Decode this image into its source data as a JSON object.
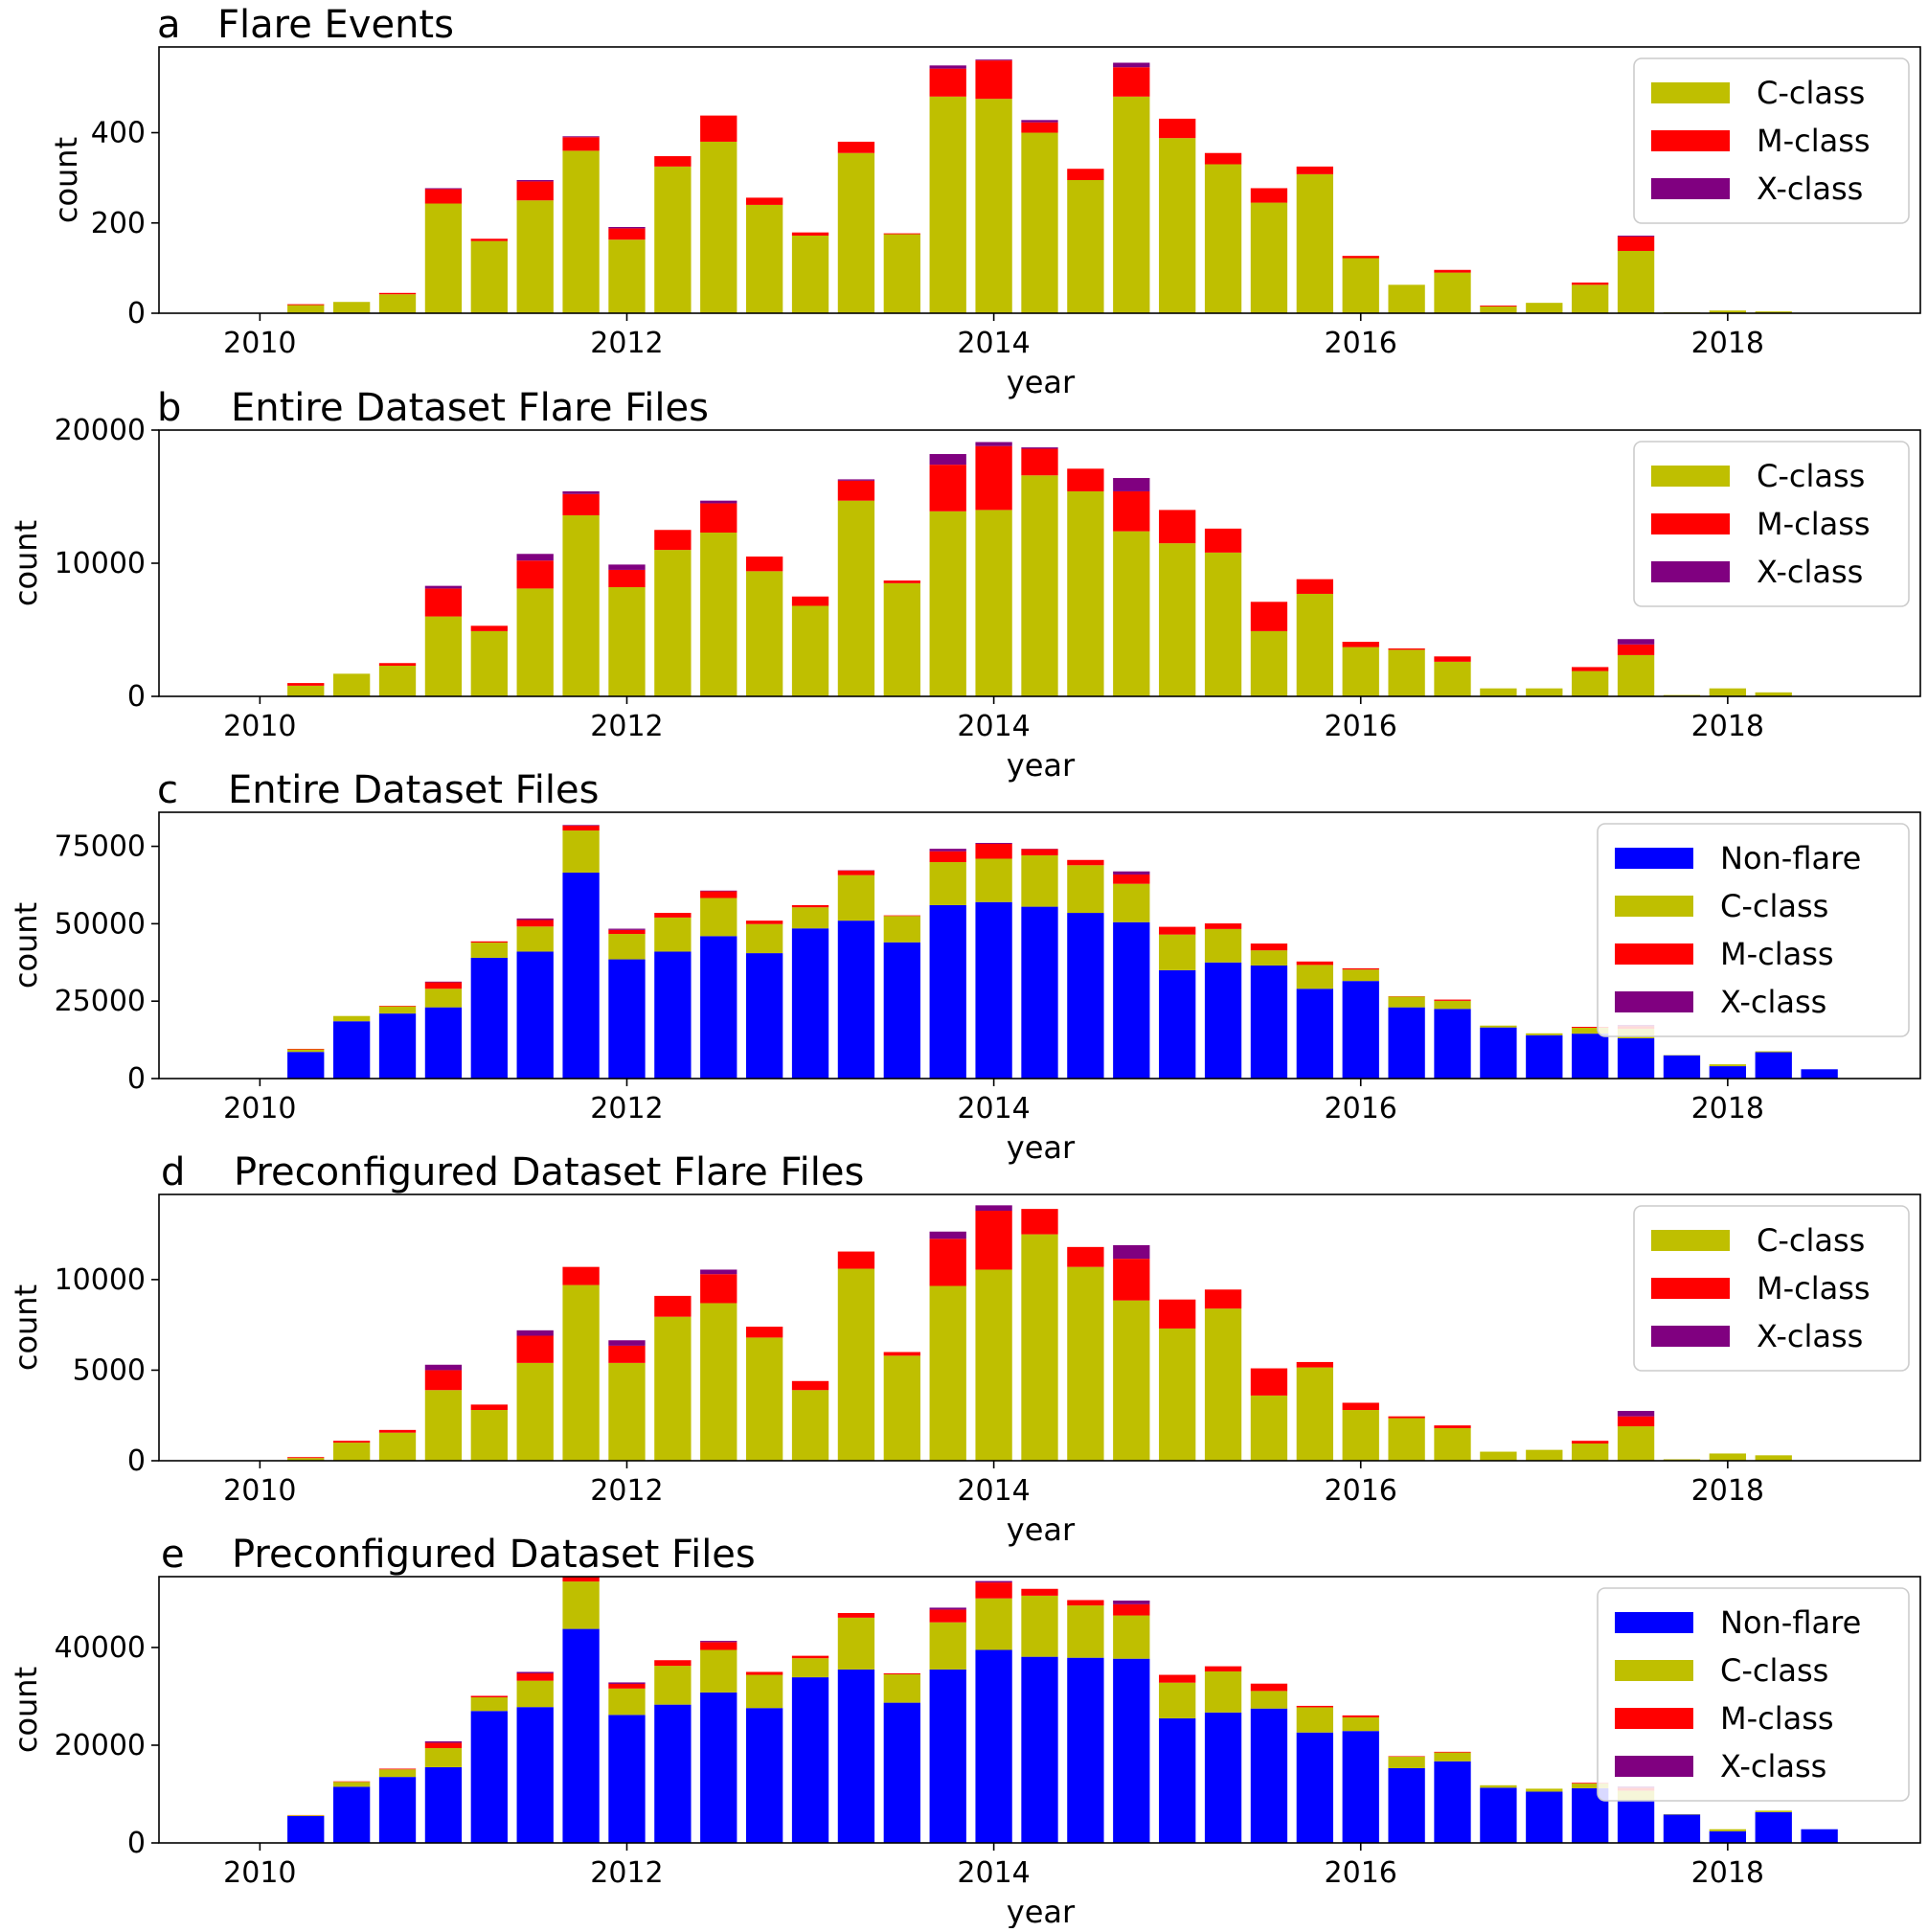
{
  "chart_data": [
    {
      "panel_letter": "a",
      "title": "Flare Events",
      "type": "bar",
      "stacked": true,
      "xlabel": "year",
      "ylabel": "count",
      "xlim": [
        2009.45,
        2019.05
      ],
      "ylim": [
        0,
        590
      ],
      "x_ticks": [
        2010,
        2012,
        2014,
        2016,
        2018
      ],
      "y_ticks": [
        0,
        200,
        400
      ],
      "x": [
        2010.25,
        2010.5,
        2010.75,
        2011.0,
        2011.25,
        2011.5,
        2011.75,
        2012.0,
        2012.25,
        2012.5,
        2012.75,
        2013.0,
        2013.25,
        2013.5,
        2013.75,
        2014.0,
        2014.25,
        2014.5,
        2014.75,
        2015.0,
        2015.25,
        2015.5,
        2015.75,
        2016.0,
        2016.25,
        2016.5,
        2016.75,
        2017.0,
        2017.25,
        2017.5,
        2017.75,
        2018.0,
        2018.25
      ],
      "legend_position": "top-right",
      "series": [
        {
          "name": "C-class",
          "color": "#bfbf00",
          "values": [
            18,
            25,
            42,
            243,
            160,
            250,
            360,
            163,
            325,
            380,
            240,
            172,
            355,
            175,
            480,
            475,
            400,
            295,
            480,
            388,
            330,
            245,
            308,
            122,
            63,
            90,
            15,
            23,
            63,
            138,
            2,
            6,
            4
          ]
        },
        {
          "name": "M-class",
          "color": "#ff0000",
          "values": [
            2,
            0,
            3,
            32,
            5,
            42,
            30,
            25,
            23,
            58,
            16,
            7,
            25,
            2,
            62,
            85,
            23,
            25,
            65,
            43,
            25,
            32,
            17,
            5,
            0,
            6,
            2,
            0,
            5,
            32,
            0,
            0,
            0
          ]
        },
        {
          "name": "X-class",
          "color": "#800080",
          "values": [
            0,
            0,
            0,
            2,
            0,
            3,
            2,
            3,
            0,
            0,
            0,
            0,
            0,
            0,
            7,
            2,
            5,
            0,
            10,
            0,
            0,
            0,
            0,
            0,
            0,
            0,
            0,
            0,
            0,
            2,
            0,
            0,
            0
          ]
        }
      ]
    },
    {
      "panel_letter": "b",
      "title": "Entire Dataset Flare Files",
      "type": "bar",
      "stacked": true,
      "xlabel": "year",
      "ylabel": "count",
      "xlim": [
        2009.45,
        2019.05
      ],
      "ylim": [
        0,
        20000
      ],
      "x_ticks": [
        2010,
        2012,
        2014,
        2016,
        2018
      ],
      "y_ticks": [
        0,
        10000,
        20000
      ],
      "x": [
        2010.25,
        2010.5,
        2010.75,
        2011.0,
        2011.25,
        2011.5,
        2011.75,
        2012.0,
        2012.25,
        2012.5,
        2012.75,
        2013.0,
        2013.25,
        2013.5,
        2013.75,
        2014.0,
        2014.25,
        2014.5,
        2014.75,
        2015.0,
        2015.25,
        2015.5,
        2015.75,
        2016.0,
        2016.25,
        2016.5,
        2016.75,
        2017.0,
        2017.25,
        2017.5,
        2017.75,
        2018.0,
        2018.25
      ],
      "legend_position": "top-right",
      "series": [
        {
          "name": "C-class",
          "color": "#bfbf00",
          "values": [
            800,
            1700,
            2300,
            6000,
            4900,
            8100,
            13600,
            8200,
            11000,
            12300,
            9400,
            6800,
            14700,
            8500,
            13900,
            14000,
            16600,
            15400,
            12400,
            11500,
            10800,
            4900,
            7700,
            3700,
            3500,
            2600,
            600,
            600,
            1900,
            3100,
            100,
            600,
            300
          ]
        },
        {
          "name": "M-class",
          "color": "#ff0000",
          "values": [
            200,
            0,
            200,
            2100,
            400,
            2100,
            1600,
            1300,
            1500,
            2200,
            1100,
            700,
            1500,
            200,
            3500,
            4800,
            2000,
            1700,
            3000,
            2500,
            1800,
            2200,
            1100,
            400,
            100,
            400,
            0,
            0,
            300,
            800,
            0,
            0,
            0
          ]
        },
        {
          "name": "X-class",
          "color": "#800080",
          "values": [
            0,
            0,
            0,
            200,
            0,
            500,
            200,
            400,
            0,
            200,
            0,
            0,
            100,
            0,
            800,
            300,
            100,
            0,
            1000,
            0,
            0,
            0,
            0,
            0,
            0,
            0,
            0,
            0,
            0,
            400,
            0,
            0,
            0
          ]
        }
      ]
    },
    {
      "panel_letter": "c",
      "title": "Entire Dataset Files",
      "type": "bar",
      "stacked": true,
      "xlabel": "year",
      "ylabel": "count",
      "xlim": [
        2009.45,
        2019.05
      ],
      "ylim": [
        0,
        86000
      ],
      "x_ticks": [
        2010,
        2012,
        2014,
        2016,
        2018
      ],
      "y_ticks": [
        0,
        25000,
        50000,
        75000
      ],
      "x": [
        2010.25,
        2010.5,
        2010.75,
        2011.0,
        2011.25,
        2011.5,
        2011.75,
        2012.0,
        2012.25,
        2012.5,
        2012.75,
        2013.0,
        2013.25,
        2013.5,
        2013.75,
        2014.0,
        2014.25,
        2014.5,
        2014.75,
        2015.0,
        2015.25,
        2015.5,
        2015.75,
        2016.0,
        2016.25,
        2016.5,
        2016.75,
        2017.0,
        2017.25,
        2017.5,
        2017.75,
        2018.0,
        2018.25,
        2018.5
      ],
      "legend_position": "top-right",
      "series": [
        {
          "name": "Non-flare",
          "color": "#0000ff",
          "values": [
            8600,
            18500,
            21000,
            23000,
            39000,
            41000,
            66500,
            38500,
            41000,
            46000,
            40500,
            48500,
            51000,
            44000,
            56000,
            57000,
            55500,
            53500,
            50500,
            35000,
            37500,
            36500,
            29000,
            31500,
            23000,
            22500,
            16500,
            14000,
            14500,
            13000,
            7500,
            4000,
            8500,
            3000
          ]
        },
        {
          "name": "C-class",
          "color": "#bfbf00",
          "values": [
            800,
            1700,
            2300,
            6000,
            4900,
            8100,
            13600,
            8200,
            11000,
            12300,
            9400,
            6800,
            14700,
            8500,
            13900,
            14000,
            16600,
            15400,
            12400,
            11500,
            10800,
            4900,
            7700,
            3700,
            3500,
            2600,
            600,
            600,
            1900,
            3100,
            100,
            600,
            300,
            0
          ]
        },
        {
          "name": "M-class",
          "color": "#ff0000",
          "values": [
            200,
            0,
            200,
            2100,
            400,
            2100,
            1600,
            1300,
            1500,
            2200,
            1100,
            700,
            1500,
            200,
            3500,
            4800,
            2000,
            1700,
            3000,
            2500,
            1800,
            2200,
            1100,
            400,
            100,
            400,
            0,
            0,
            300,
            800,
            0,
            0,
            0,
            0
          ]
        },
        {
          "name": "X-class",
          "color": "#800080",
          "values": [
            0,
            0,
            0,
            200,
            0,
            500,
            200,
            400,
            0,
            200,
            0,
            0,
            100,
            0,
            800,
            300,
            100,
            0,
            1000,
            0,
            0,
            0,
            0,
            0,
            0,
            0,
            0,
            0,
            0,
            400,
            0,
            0,
            0,
            0
          ]
        }
      ]
    },
    {
      "panel_letter": "d",
      "title": "Preconfigured Dataset Flare Files",
      "type": "bar",
      "stacked": true,
      "xlabel": "year",
      "ylabel": "count",
      "xlim": [
        2009.45,
        2019.05
      ],
      "ylim": [
        0,
        14700
      ],
      "x_ticks": [
        2010,
        2012,
        2014,
        2016,
        2018
      ],
      "y_ticks": [
        0,
        5000,
        10000
      ],
      "x": [
        2010.25,
        2010.5,
        2010.75,
        2011.0,
        2011.25,
        2011.5,
        2011.75,
        2012.0,
        2012.25,
        2012.5,
        2012.75,
        2013.0,
        2013.25,
        2013.5,
        2013.75,
        2014.0,
        2014.25,
        2014.5,
        2014.75,
        2015.0,
        2015.25,
        2015.5,
        2015.75,
        2016.0,
        2016.25,
        2016.5,
        2016.75,
        2017.0,
        2017.25,
        2017.5,
        2017.75,
        2018.0,
        2018.25
      ],
      "legend_position": "top-right",
      "series": [
        {
          "name": "C-class",
          "color": "#bfbf00",
          "values": [
            150,
            1000,
            1550,
            3900,
            2800,
            5400,
            9700,
            5400,
            7950,
            8700,
            6800,
            3900,
            10600,
            5800,
            9650,
            10550,
            12500,
            10700,
            8850,
            7300,
            8400,
            3600,
            5150,
            2800,
            2350,
            1800,
            500,
            600,
            950,
            1900,
            80,
            400,
            300
          ]
        },
        {
          "name": "M-class",
          "color": "#ff0000",
          "values": [
            50,
            100,
            150,
            1100,
            300,
            1500,
            1000,
            950,
            1150,
            1600,
            600,
            500,
            950,
            200,
            2600,
            3250,
            1400,
            1100,
            2300,
            1600,
            1050,
            1500,
            300,
            400,
            100,
            150,
            0,
            0,
            150,
            550,
            0,
            0,
            0
          ]
        },
        {
          "name": "X-class",
          "color": "#800080",
          "values": [
            0,
            0,
            0,
            300,
            0,
            300,
            0,
            300,
            0,
            250,
            0,
            0,
            0,
            0,
            400,
            300,
            0,
            0,
            750,
            0,
            0,
            0,
            0,
            0,
            0,
            0,
            0,
            0,
            0,
            300,
            0,
            0,
            0
          ]
        }
      ]
    },
    {
      "panel_letter": "e",
      "title": "Preconfigured Dataset Files",
      "type": "bar",
      "stacked": true,
      "xlabel": "year",
      "ylabel": "count",
      "xlim": [
        2009.45,
        2019.05
      ],
      "ylim": [
        0,
        54500
      ],
      "x_ticks": [
        2010,
        2012,
        2014,
        2016,
        2018
      ],
      "y_ticks": [
        0,
        20000,
        40000
      ],
      "x": [
        2010.25,
        2010.5,
        2010.75,
        2011.0,
        2011.25,
        2011.5,
        2011.75,
        2012.0,
        2012.25,
        2012.5,
        2012.75,
        2013.0,
        2013.25,
        2013.5,
        2013.75,
        2014.0,
        2014.25,
        2014.5,
        2014.75,
        2015.0,
        2015.25,
        2015.5,
        2015.75,
        2016.0,
        2016.25,
        2016.5,
        2016.75,
        2017.0,
        2017.25,
        2017.5,
        2017.75,
        2018.0,
        2018.25,
        2018.5
      ],
      "legend_position": "top-right",
      "series": [
        {
          "name": "Non-flare",
          "color": "#0000ff",
          "values": [
            5500,
            11500,
            13500,
            15500,
            27000,
            27800,
            43800,
            26200,
            28300,
            30800,
            27600,
            33900,
            35500,
            28700,
            35500,
            39500,
            38100,
            37900,
            37700,
            25500,
            26700,
            27500,
            22600,
            22900,
            15300,
            16700,
            11300,
            10500,
            11200,
            8800,
            5800,
            2400,
            6300,
            2800
          ]
        },
        {
          "name": "C-class",
          "color": "#bfbf00",
          "values": [
            150,
            1000,
            1550,
            3900,
            2800,
            5400,
            9700,
            5400,
            7950,
            8700,
            6800,
            3900,
            10600,
            5800,
            9650,
            10550,
            12500,
            10700,
            8850,
            7300,
            8400,
            3600,
            5150,
            2800,
            2350,
            1800,
            500,
            600,
            950,
            1900,
            80,
            400,
            300,
            0
          ]
        },
        {
          "name": "M-class",
          "color": "#ff0000",
          "values": [
            50,
            100,
            150,
            1100,
            300,
            1500,
            1000,
            950,
            1150,
            1600,
            600,
            500,
            950,
            200,
            2600,
            3250,
            1400,
            1100,
            2300,
            1600,
            1050,
            1500,
            300,
            400,
            100,
            150,
            0,
            0,
            150,
            550,
            0,
            0,
            0,
            0
          ]
        },
        {
          "name": "X-class",
          "color": "#800080",
          "values": [
            0,
            0,
            0,
            300,
            0,
            300,
            0,
            300,
            0,
            250,
            0,
            0,
            0,
            0,
            400,
            300,
            0,
            0,
            750,
            0,
            0,
            0,
            0,
            0,
            0,
            0,
            0,
            0,
            0,
            300,
            0,
            0,
            0,
            0
          ]
        }
      ]
    }
  ]
}
